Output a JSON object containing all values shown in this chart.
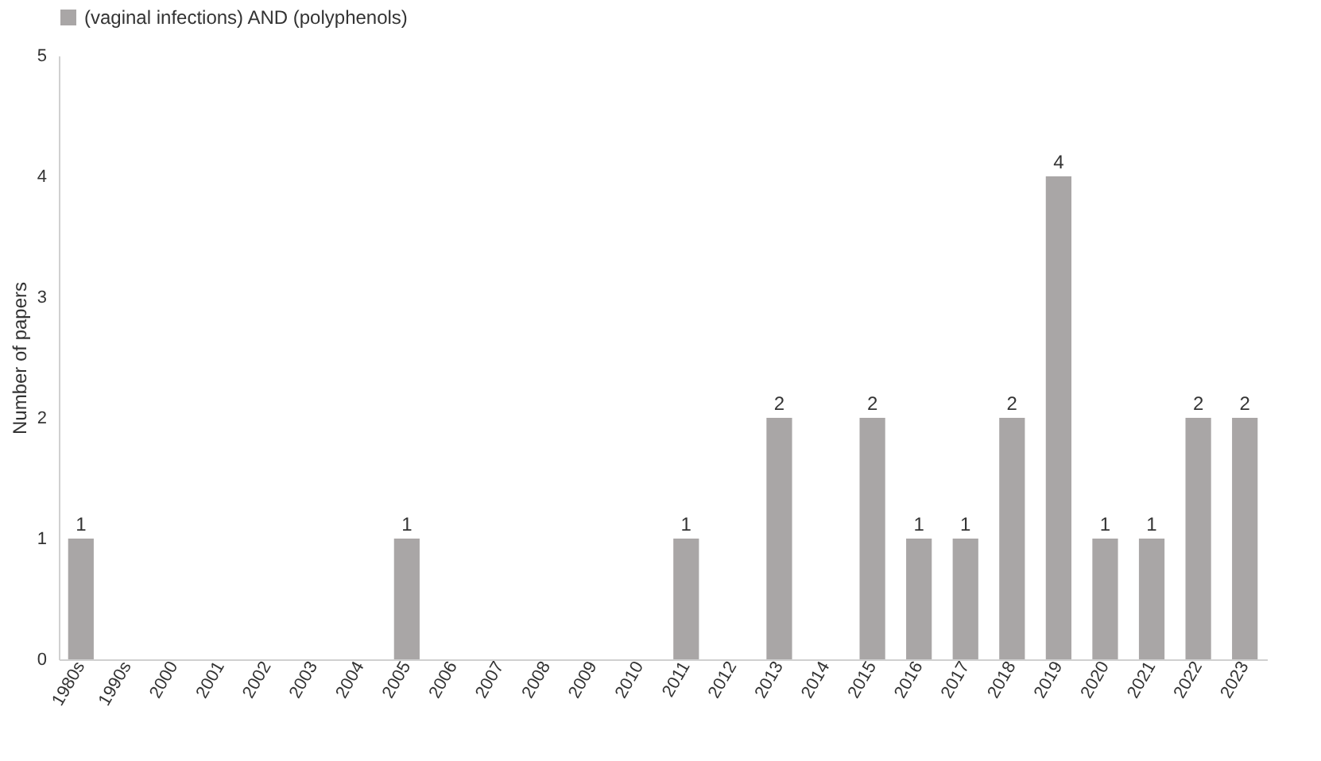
{
  "chart_data": {
    "type": "bar",
    "ylabel": "Number of papers",
    "categories": [
      "1980s",
      "1990s",
      "2000",
      "2001",
      "2002",
      "2003",
      "2004",
      "2005",
      "2006",
      "2007",
      "2008",
      "2009",
      "2010",
      "2011",
      "2012",
      "2013",
      "2014",
      "2015",
      "2016",
      "2017",
      "2018",
      "2019",
      "2020",
      "2021",
      "2022",
      "2023"
    ],
    "series": [
      {
        "name": "(vaginal infections) AND (polyphenols)",
        "color": "#a9a6a6",
        "values": [
          1,
          0,
          0,
          0,
          0,
          0,
          0,
          1,
          0,
          0,
          0,
          0,
          0,
          1,
          0,
          2,
          0,
          2,
          1,
          1,
          2,
          4,
          1,
          1,
          2,
          2
        ],
        "value_labels": [
          "1",
          null,
          null,
          null,
          null,
          null,
          null,
          "1",
          null,
          null,
          null,
          null,
          null,
          "1",
          null,
          "2",
          null,
          "2",
          "1",
          "1",
          "2",
          "4",
          "1",
          "1",
          "2",
          "2"
        ]
      }
    ],
    "ylim": [
      0,
      5
    ],
    "yticks": [
      0,
      1,
      2,
      3,
      4,
      5
    ],
    "grid": false,
    "legend": "top"
  }
}
